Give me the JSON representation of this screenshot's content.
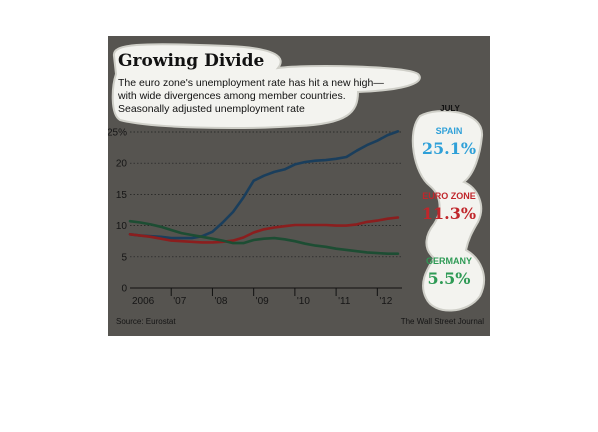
{
  "chart_data": {
    "type": "line",
    "title": "Growing Divide",
    "subtitle_lines": [
      "The euro zone's unemployment rate has hit a new high—",
      "with wide divergences among member countries.",
      "Seasonally adjusted unemployment rate"
    ],
    "xlim": [
      2006.0,
      2012.55
    ],
    "ylim": [
      0,
      25
    ],
    "y_ticks": [
      0,
      5,
      10,
      15,
      20,
      25
    ],
    "y_tick_labels": [
      "0",
      "5",
      "10",
      "15",
      "20",
      "25%"
    ],
    "x_ticks": [
      2006,
      2007,
      2008,
      2009,
      2010,
      2011,
      2012
    ],
    "x_tick_labels": [
      "2006",
      "'07",
      "'08",
      "'09",
      "'10",
      "'11",
      "'12"
    ],
    "grid": true,
    "column_header": "JULY",
    "series": [
      {
        "name": "SPAIN",
        "value_label": "25.1%",
        "color": "#1a3e5c",
        "label_color": "#2fa0d8",
        "x": [
          2006.0,
          2006.25,
          2006.5,
          2006.75,
          2007.0,
          2007.25,
          2007.5,
          2007.75,
          2008.0,
          2008.25,
          2008.5,
          2008.75,
          2009.0,
          2009.25,
          2009.5,
          2009.75,
          2010.0,
          2010.25,
          2010.5,
          2010.75,
          2011.0,
          2011.25,
          2011.5,
          2011.75,
          2012.0,
          2012.25,
          2012.5
        ],
        "y": [
          8.6,
          8.4,
          8.3,
          8.2,
          8.0,
          8.0,
          8.0,
          8.3,
          9.0,
          10.5,
          12.2,
          14.5,
          17.2,
          18.0,
          18.6,
          19.0,
          19.8,
          20.2,
          20.4,
          20.5,
          20.7,
          21.0,
          22.0,
          22.9,
          23.6,
          24.5,
          25.1
        ]
      },
      {
        "name": "EURO ZONE",
        "value_label": "11.3%",
        "color": "#8b1e1e",
        "label_color": "#c0262b",
        "x": [
          2006.0,
          2006.25,
          2006.5,
          2006.75,
          2007.0,
          2007.25,
          2007.5,
          2007.75,
          2008.0,
          2008.25,
          2008.5,
          2008.75,
          2009.0,
          2009.25,
          2009.5,
          2009.75,
          2010.0,
          2010.25,
          2010.5,
          2010.75,
          2011.0,
          2011.25,
          2011.5,
          2011.75,
          2012.0,
          2012.25,
          2012.5
        ],
        "y": [
          8.6,
          8.4,
          8.2,
          7.9,
          7.6,
          7.5,
          7.4,
          7.3,
          7.3,
          7.4,
          7.6,
          8.1,
          8.9,
          9.4,
          9.7,
          9.9,
          10.1,
          10.1,
          10.1,
          10.1,
          10.0,
          10.0,
          10.2,
          10.6,
          10.8,
          11.1,
          11.3
        ]
      },
      {
        "name": "GERMANY",
        "value_label": "5.5%",
        "color": "#1d4d33",
        "label_color": "#2e9a55",
        "x": [
          2006.0,
          2006.25,
          2006.5,
          2006.75,
          2007.0,
          2007.25,
          2007.5,
          2007.75,
          2008.0,
          2008.25,
          2008.5,
          2008.75,
          2009.0,
          2009.25,
          2009.5,
          2009.75,
          2010.0,
          2010.25,
          2010.5,
          2010.75,
          2011.0,
          2011.25,
          2011.5,
          2011.75,
          2012.0,
          2012.25,
          2012.5
        ],
        "y": [
          10.7,
          10.5,
          10.2,
          9.8,
          9.3,
          8.8,
          8.5,
          8.2,
          7.9,
          7.6,
          7.2,
          7.2,
          7.7,
          7.9,
          8.0,
          7.8,
          7.5,
          7.1,
          6.8,
          6.6,
          6.3,
          6.1,
          5.9,
          5.7,
          5.6,
          5.5,
          5.5
        ]
      }
    ],
    "source": "Source: Eurostat",
    "credit": "The Wall Street Journal"
  },
  "colors": {
    "panel_background": "#565450",
    "label_background": "#f3f3ef"
  }
}
